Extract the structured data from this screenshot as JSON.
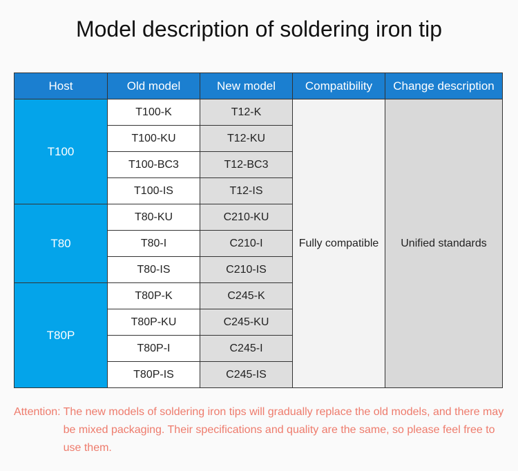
{
  "title": "Model description of soldering iron tip",
  "table": {
    "headers": [
      "Host",
      "Old model",
      "New model",
      "Compatibility",
      "Change description"
    ],
    "groups": [
      {
        "host": "T100",
        "rows": [
          [
            "T100-K",
            "T12-K"
          ],
          [
            "T100-KU",
            "T12-KU"
          ],
          [
            "T100-BC3",
            "T12-BC3"
          ],
          [
            "T100-IS",
            "T12-IS"
          ]
        ]
      },
      {
        "host": "T80",
        "rows": [
          [
            "T80-KU",
            "C210-KU"
          ],
          [
            "T80-I",
            "C210-I"
          ],
          [
            "T80-IS",
            "C210-IS"
          ]
        ]
      },
      {
        "host": "T80P",
        "rows": [
          [
            "T80P-K",
            "C245-K"
          ],
          [
            "T80P-KU",
            "C245-KU"
          ],
          [
            "T80P-I",
            "C245-I"
          ],
          [
            "T80P-IS",
            "C245-IS"
          ]
        ]
      }
    ],
    "compatibility": "Fully compatible",
    "change_description": "Unified standards"
  },
  "attention": {
    "label": "Attention:",
    "text": "The new models of soldering iron tips will gradually replace the old models, and there may be mixed packaging. Their specifications and quality are the same, so please feel free to use them."
  }
}
